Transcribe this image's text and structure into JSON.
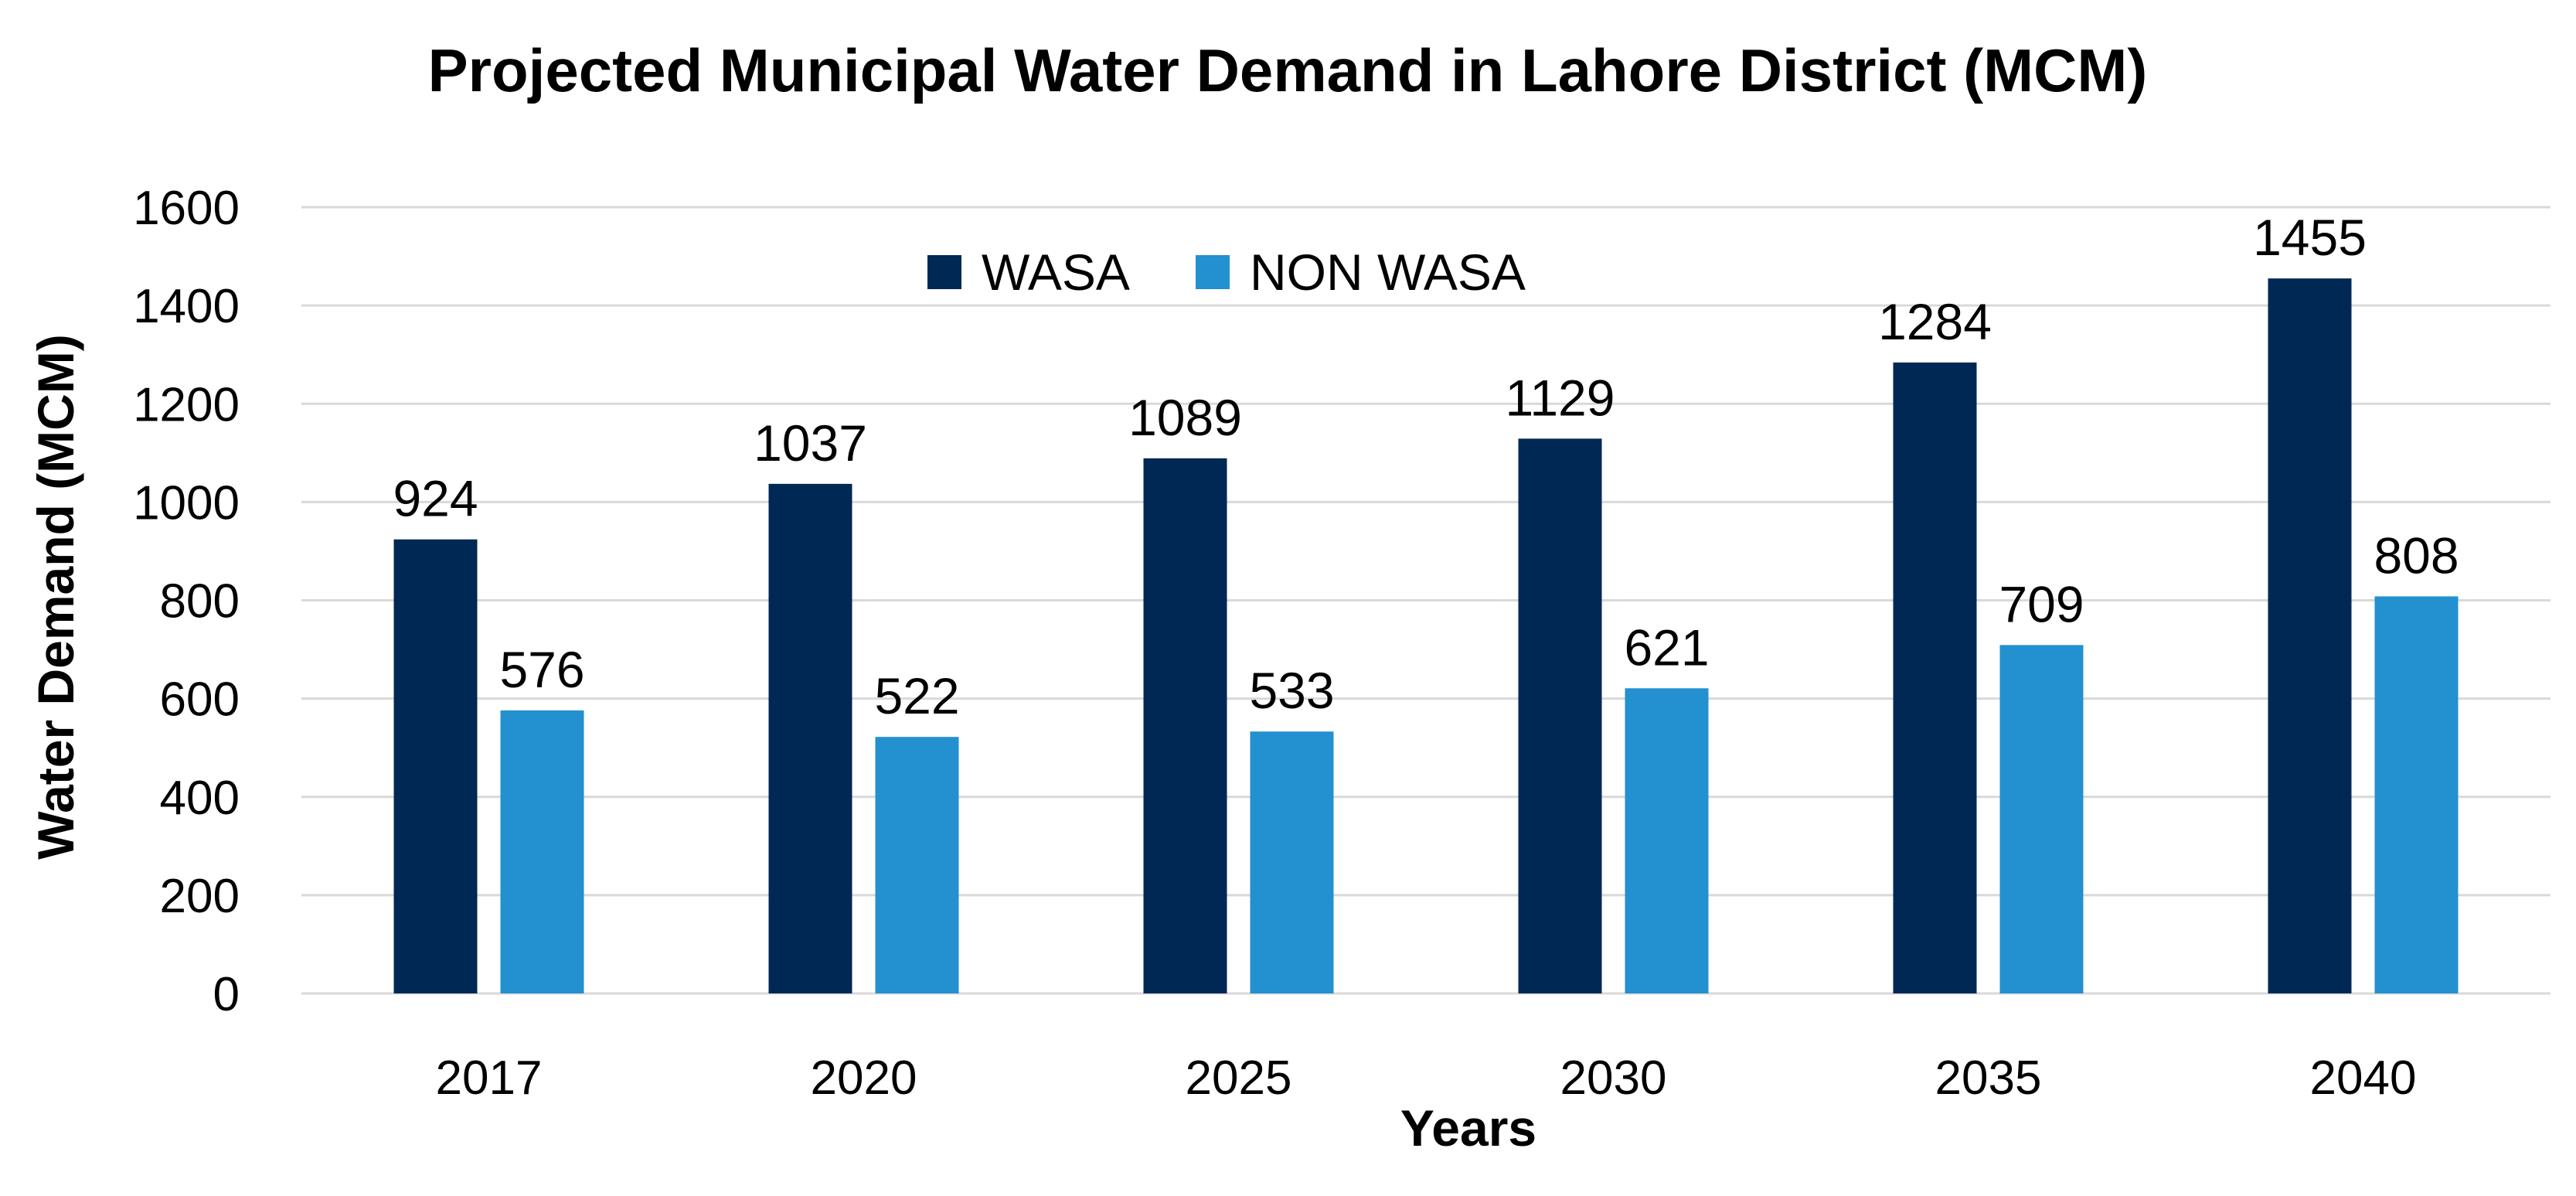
{
  "chart_data": {
    "type": "bar",
    "title": "Projected Municipal Water Demand in Lahore District (MCM)",
    "xlabel": "Years",
    "ylabel": "Water Demand (MCM)",
    "categories": [
      "2017",
      "2020",
      "2025",
      "2030",
      "2035",
      "2040"
    ],
    "series": [
      {
        "name": "WASA",
        "values": [
          924,
          1037,
          1089,
          1129,
          1284,
          1455
        ],
        "color": "#002855"
      },
      {
        "name": "NON WASA",
        "values": [
          576,
          522,
          533,
          621,
          709,
          808
        ],
        "color": "#2390D0"
      }
    ],
    "ylim": [
      0,
      1600
    ],
    "yticks": [
      "0",
      "200",
      "400",
      "600",
      "800",
      "1000",
      "1200",
      "1400",
      "1600"
    ],
    "grid": true,
    "gridline_color": "#D9D9D9",
    "legend_position": "top-center",
    "data_labels": true
  }
}
